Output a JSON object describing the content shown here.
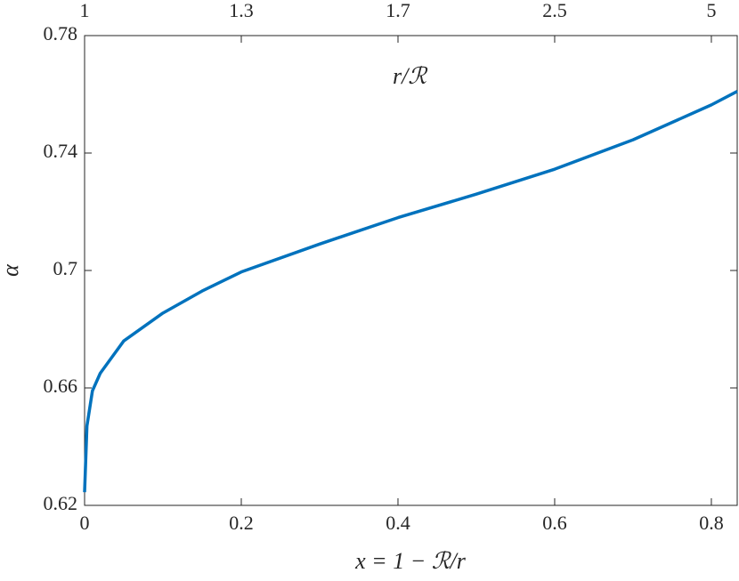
{
  "chart_data": {
    "type": "line",
    "x_label": "x = 1 − ℛ/r",
    "y_label": "α",
    "x2_label": "r/ℛ",
    "x": [
      0,
      0.003,
      0.01,
      0.02,
      0.05,
      0.1,
      0.15,
      0.2,
      0.3,
      0.4,
      0.5,
      0.6,
      0.7,
      0.8,
      0.833
    ],
    "series": [
      {
        "color": "#0072bd",
        "values": [
          0.6245,
          0.647,
          0.659,
          0.665,
          0.676,
          0.6855,
          0.693,
          0.6995,
          0.709,
          0.718,
          0.726,
          0.7345,
          0.7445,
          0.7564,
          0.761
        ]
      }
    ],
    "xlim": [
      0,
      0.833
    ],
    "xticks": [
      0,
      0.2,
      0.4,
      0.6,
      0.8
    ],
    "x2lim": [
      1,
      6
    ],
    "x2ticks": [
      1,
      {
        "value": 1.25,
        "label": "1.3"
      },
      {
        "value": 1.6667,
        "label": "1.7"
      },
      2.5,
      5
    ],
    "ylim": [
      0.62,
      0.78
    ],
    "yticks": [
      0.62,
      0.66,
      0.7,
      0.74,
      0.78
    ]
  }
}
